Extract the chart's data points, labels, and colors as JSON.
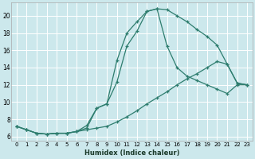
{
  "xlabel": "Humidex (Indice chaleur)",
  "bg_color": "#cce8ec",
  "grid_color": "#ffffff",
  "line_color": "#2e7d6e",
  "xlim": [
    -0.5,
    23.5
  ],
  "ylim": [
    5.5,
    21.5
  ],
  "xtick_labels": [
    "0",
    "1",
    "2",
    "3",
    "4",
    "5",
    "6",
    "7",
    "8",
    "9",
    "10",
    "11",
    "12",
    "13",
    "14",
    "15",
    "16",
    "17",
    "18",
    "19",
    "20",
    "21",
    "22",
    "23"
  ],
  "ytick_values": [
    6,
    8,
    10,
    12,
    14,
    16,
    18,
    20
  ],
  "series1_x": [
    0,
    1,
    2,
    3,
    4,
    5,
    6,
    7,
    8,
    9,
    10,
    11,
    12,
    13,
    14,
    15,
    16,
    17,
    18,
    19,
    20,
    21,
    22,
    23
  ],
  "series1_y": [
    7.2,
    6.8,
    6.4,
    6.3,
    6.4,
    6.4,
    6.6,
    7.3,
    9.3,
    9.8,
    14.8,
    18.0,
    19.3,
    20.5,
    20.8,
    20.7,
    20.0,
    19.3,
    18.4,
    17.6,
    16.6,
    14.4,
    12.2,
    12.0
  ],
  "series2_x": [
    0,
    1,
    2,
    3,
    4,
    5,
    6,
    7,
    8,
    9,
    10,
    11,
    12,
    13,
    14,
    15,
    16,
    17,
    18,
    19,
    20,
    21,
    22,
    23
  ],
  "series2_y": [
    7.2,
    6.8,
    6.4,
    6.3,
    6.4,
    6.4,
    6.6,
    7.0,
    9.3,
    9.8,
    12.3,
    16.5,
    18.2,
    20.5,
    20.8,
    16.5,
    14.0,
    13.0,
    12.5,
    12.0,
    11.5,
    11.0,
    12.0,
    12.0
  ],
  "series3_x": [
    0,
    1,
    2,
    3,
    4,
    5,
    6,
    7,
    8,
    9,
    10,
    11,
    12,
    13,
    14,
    15,
    16,
    17,
    18,
    19,
    20,
    21,
    22,
    23
  ],
  "series3_y": [
    7.2,
    6.8,
    6.4,
    6.3,
    6.4,
    6.4,
    6.6,
    6.8,
    7.0,
    7.2,
    7.7,
    8.3,
    9.0,
    9.8,
    10.5,
    11.2,
    12.0,
    12.7,
    13.3,
    14.0,
    14.7,
    14.4,
    12.2,
    12.0
  ]
}
